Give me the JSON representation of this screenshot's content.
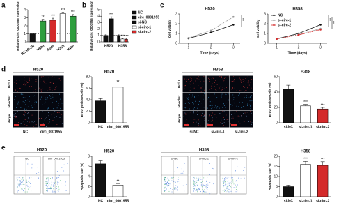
{
  "panel_labels": [
    "a",
    "b",
    "c",
    "d",
    "e"
  ],
  "chart_data": [
    {
      "type": "bar",
      "y_label": "Relative circ_0001955 expression",
      "categories": [
        "BEAS-2B",
        "H520",
        "A549",
        "H358",
        "H460"
      ],
      "values": [
        1,
        2.6,
        2.7,
        3.5,
        3.2
      ],
      "errors": [
        0.1,
        0.2,
        0.25,
        0.2,
        0.2
      ],
      "colors": [
        "#111111",
        "#2e9e3e",
        "#d42a2a",
        "#ffffff",
        "#2e9e3e"
      ],
      "significance": [
        null,
        "**",
        "***",
        "***",
        "***"
      ],
      "reference_line": 1,
      "ylim": [
        0,
        4
      ],
      "yticks": [
        0,
        1,
        2,
        3,
        4
      ]
    },
    {
      "type": "bar",
      "y_label": "Relative circ_0001955 expression",
      "categories": [
        "H520",
        "H358"
      ],
      "series": [
        {
          "name": "NC",
          "color": "#111111",
          "values": [
            1,
            null
          ],
          "errors": [
            0.1,
            null
          ],
          "significance": [
            null,
            null
          ]
        },
        {
          "name": "circ_0001955",
          "color": "#111111",
          "values": [
            3.6,
            null
          ],
          "errors": [
            0.3,
            null
          ],
          "significance": [
            "***",
            null
          ]
        },
        {
          "name": "si-NC",
          "color": "#111111",
          "values": [
            null,
            1
          ],
          "errors": [
            null,
            0.1
          ],
          "significance": [
            null,
            null
          ]
        },
        {
          "name": "si-circ-1",
          "color": "#ffffff",
          "values": [
            null,
            0.45
          ],
          "errors": [
            null,
            0.08
          ],
          "significance": [
            null,
            "***"
          ]
        },
        {
          "name": "si-circ-2",
          "color": "#d42a2a",
          "values": [
            null,
            0.4
          ],
          "errors": [
            null,
            0.08
          ],
          "significance": [
            null,
            "***"
          ]
        }
      ],
      "reference_line": 1,
      "ylim": [
        0,
        5
      ],
      "yticks": [
        0,
        1,
        2,
        3,
        4,
        5
      ]
    },
    {
      "type": "line",
      "title": "H520",
      "x_label": "Time (days)",
      "y_label": "Cell viability",
      "x": [
        1,
        2,
        3
      ],
      "series": [
        {
          "name": "NC",
          "color": "#111111",
          "values": [
            0.5,
            1.1,
            1.9
          ]
        },
        {
          "name": "circ_0001955",
          "color": "#999999",
          "dashed": true,
          "values": [
            0.55,
            1.3,
            2.7
          ]
        }
      ],
      "significance": [
        "**"
      ],
      "xlim": [
        0.6,
        3.3
      ],
      "xticks": [
        1,
        2,
        3
      ],
      "ylim": [
        0,
        3
      ],
      "yticks": [
        0,
        1,
        2,
        3
      ]
    },
    {
      "type": "line",
      "title": "H358",
      "x_label": "Time (days)",
      "y_label": "Cell viability",
      "x": [
        1,
        2,
        3
      ],
      "series": [
        {
          "name": "NC",
          "color": "#111111",
          "values": [
            0.45,
            1.0,
            1.9
          ]
        },
        {
          "name": "si-circ-1",
          "color": "#999999",
          "dashed": true,
          "values": [
            0.45,
            0.9,
            1.5
          ]
        },
        {
          "name": "si-circ-2",
          "color": "#d42a2a",
          "dashed": true,
          "values": [
            0.45,
            0.85,
            1.4
          ]
        }
      ],
      "significance": [
        "**",
        "**"
      ],
      "xlim": [
        0.6,
        3.3
      ],
      "xticks": [
        1,
        2,
        3
      ],
      "ylim": [
        0,
        3
      ],
      "yticks": [
        0,
        1,
        2,
        3
      ]
    },
    {
      "type": "bar",
      "title": "H520",
      "y_label": "BrdU positive cells (%)",
      "categories": [
        "NC",
        "circ_0001955"
      ],
      "values": [
        38,
        62
      ],
      "errors": [
        4,
        5
      ],
      "colors": [
        "#111111",
        "#ffffff"
      ],
      "significance": [
        null,
        "**"
      ],
      "ylim": [
        0,
        80
      ],
      "yticks": [
        0,
        20,
        40,
        60,
        80
      ]
    },
    {
      "type": "bar",
      "title": "H358",
      "y_label": "BrdU positive cells (%)",
      "categories": [
        "si-NC",
        "si-circ-1",
        "si-circ-2"
      ],
      "values": [
        44,
        22,
        18
      ],
      "errors": [
        5,
        2,
        2
      ],
      "colors": [
        "#111111",
        "#ffffff",
        "#d42a2a"
      ],
      "significance": [
        null,
        "***",
        "***"
      ],
      "ylim": [
        0,
        60
      ],
      "yticks": [
        0,
        20,
        40,
        60
      ]
    },
    {
      "type": "bar",
      "title": "H520",
      "y_label": "Apoptosis rate (%)",
      "categories": [
        "NC",
        "circ_0001955"
      ],
      "values": [
        6.5,
        2.3
      ],
      "errors": [
        0.6,
        0.3
      ],
      "colors": [
        "#111111",
        "#ffffff"
      ],
      "significance": [
        null,
        "**"
      ],
      "ylim": [
        0,
        8
      ],
      "yticks": [
        0,
        2,
        4,
        6,
        8
      ]
    },
    {
      "type": "bar",
      "title": "H358",
      "y_label": "Apoptosis rate (%)",
      "categories": [
        "si-NC",
        "si-circ-1",
        "si-circ-2"
      ],
      "values": [
        5,
        16,
        15.5
      ],
      "errors": [
        0.7,
        1.5,
        1.8
      ],
      "colors": [
        "#111111",
        "#ffffff",
        "#d42a2a"
      ],
      "significance": [
        null,
        "***",
        "***"
      ],
      "ylim": [
        0,
        20
      ],
      "yticks": [
        0,
        5,
        10,
        15,
        20
      ]
    }
  ],
  "micrographs": [
    {
      "title": "H520",
      "rows": [
        "BrdU",
        "Hoechst",
        "Merge"
      ],
      "columns": [
        "NC",
        "circ_0001955"
      ]
    },
    {
      "title": "H358",
      "rows": [
        "BrdU",
        "Hoechst",
        "Merge"
      ],
      "columns": [
        "si-NC",
        "si-circ-1",
        "si-circ-2"
      ]
    }
  ],
  "flow_plots": [
    {
      "title": "H520",
      "plots": [
        "NC",
        "circ_0001955"
      ]
    },
    {
      "title": "H358",
      "plots": [
        "si-NC",
        "si-circ-1",
        "si-circ-2"
      ]
    }
  ]
}
